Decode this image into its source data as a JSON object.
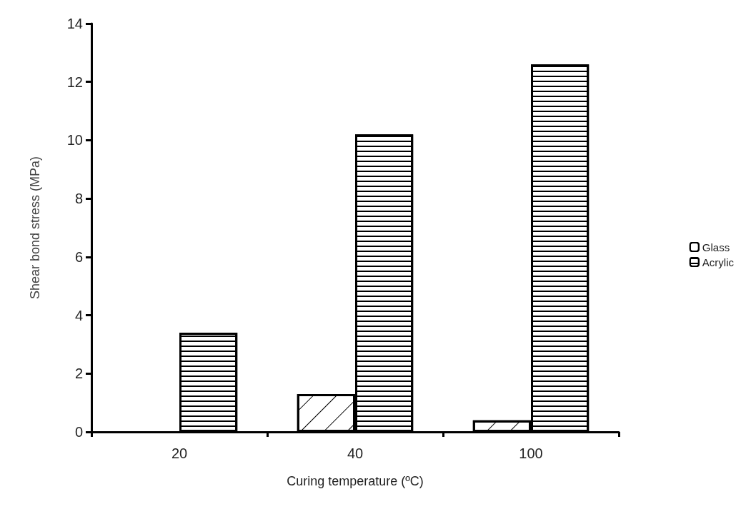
{
  "chart_data": {
    "type": "bar",
    "xlabel": "Curing temperature (ºC)",
    "ylabel": "Shear bond stress (MPa)",
    "categories": [
      "20",
      "40",
      "100"
    ],
    "series": [
      {
        "name": "Glass",
        "color": "#ffffff",
        "values": [
          null,
          1.3,
          0.4
        ]
      },
      {
        "name": "Acrylic",
        "color": "#ffffff",
        "values": [
          3.4,
          10.2,
          12.6
        ]
      }
    ],
    "ylim": [
      0,
      14
    ],
    "yticks": [
      0,
      2,
      4,
      6,
      8,
      10,
      12,
      14
    ],
    "grid": false,
    "legend": "right"
  }
}
